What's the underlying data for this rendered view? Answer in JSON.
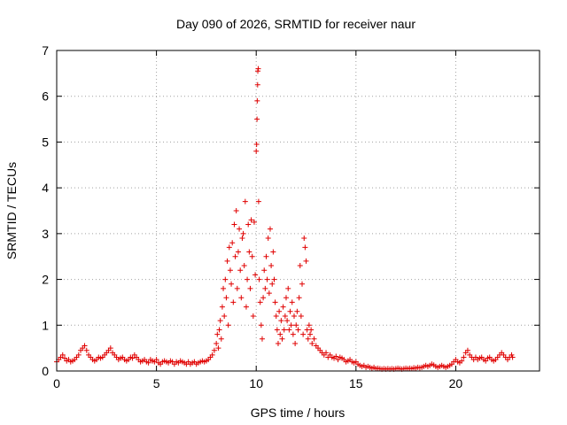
{
  "chart_data": {
    "type": "scatter",
    "title": "Day 090 of 2026, SRMTID for receiver naur",
    "xlabel": "GPS time / hours",
    "ylabel": "SRMTID / TECUs",
    "xlim": [
      0,
      24.2
    ],
    "ylim": [
      0,
      7
    ],
    "xticks": [
      "0",
      "5",
      "10",
      "15",
      "20"
    ],
    "yticks": [
      "0",
      "1",
      "2",
      "3",
      "4",
      "5",
      "6",
      "7"
    ],
    "grid": true,
    "marker": "plus",
    "color": "#e00000",
    "series": [
      {
        "name": "SRMTID",
        "points": [
          [
            0.0,
            0.2
          ],
          [
            0.1,
            0.25
          ],
          [
            0.2,
            0.3
          ],
          [
            0.3,
            0.35
          ],
          [
            0.4,
            0.28
          ],
          [
            0.5,
            0.22
          ],
          [
            0.6,
            0.25
          ],
          [
            0.7,
            0.2
          ],
          [
            0.8,
            0.22
          ],
          [
            0.9,
            0.25
          ],
          [
            1.0,
            0.3
          ],
          [
            1.1,
            0.35
          ],
          [
            1.2,
            0.45
          ],
          [
            1.3,
            0.5
          ],
          [
            1.4,
            0.55
          ],
          [
            1.5,
            0.45
          ],
          [
            1.6,
            0.35
          ],
          [
            1.7,
            0.3
          ],
          [
            1.8,
            0.25
          ],
          [
            1.9,
            0.22
          ],
          [
            2.0,
            0.25
          ],
          [
            2.1,
            0.3
          ],
          [
            2.2,
            0.28
          ],
          [
            2.3,
            0.3
          ],
          [
            2.4,
            0.35
          ],
          [
            2.5,
            0.4
          ],
          [
            2.6,
            0.45
          ],
          [
            2.7,
            0.5
          ],
          [
            2.8,
            0.4
          ],
          [
            2.9,
            0.35
          ],
          [
            3.0,
            0.3
          ],
          [
            3.1,
            0.25
          ],
          [
            3.2,
            0.28
          ],
          [
            3.3,
            0.3
          ],
          [
            3.4,
            0.25
          ],
          [
            3.5,
            0.22
          ],
          [
            3.6,
            0.25
          ],
          [
            3.7,
            0.3
          ],
          [
            3.8,
            0.28
          ],
          [
            3.9,
            0.35
          ],
          [
            4.0,
            0.3
          ],
          [
            4.1,
            0.25
          ],
          [
            4.2,
            0.2
          ],
          [
            4.3,
            0.22
          ],
          [
            4.4,
            0.25
          ],
          [
            4.5,
            0.2
          ],
          [
            4.6,
            0.18
          ],
          [
            4.7,
            0.25
          ],
          [
            4.8,
            0.22
          ],
          [
            4.9,
            0.2
          ],
          [
            5.0,
            0.25
          ],
          [
            5.1,
            0.18
          ],
          [
            5.2,
            0.15
          ],
          [
            5.3,
            0.2
          ],
          [
            5.4,
            0.22
          ],
          [
            5.5,
            0.2
          ],
          [
            5.6,
            0.18
          ],
          [
            5.7,
            0.22
          ],
          [
            5.8,
            0.2
          ],
          [
            5.9,
            0.15
          ],
          [
            6.0,
            0.2
          ],
          [
            6.1,
            0.18
          ],
          [
            6.2,
            0.22
          ],
          [
            6.3,
            0.2
          ],
          [
            6.4,
            0.18
          ],
          [
            6.5,
            0.15
          ],
          [
            6.6,
            0.2
          ],
          [
            6.7,
            0.15
          ],
          [
            6.8,
            0.18
          ],
          [
            6.9,
            0.2
          ],
          [
            7.0,
            0.15
          ],
          [
            7.1,
            0.18
          ],
          [
            7.2,
            0.2
          ],
          [
            7.3,
            0.22
          ],
          [
            7.4,
            0.2
          ],
          [
            7.5,
            0.22
          ],
          [
            7.6,
            0.25
          ],
          [
            7.7,
            0.3
          ],
          [
            7.8,
            0.35
          ],
          [
            7.9,
            0.45
          ],
          [
            8.0,
            0.6
          ],
          [
            8.05,
            0.8
          ],
          [
            8.1,
            0.5
          ],
          [
            8.15,
            0.9
          ],
          [
            8.2,
            1.1
          ],
          [
            8.25,
            0.7
          ],
          [
            8.3,
            1.4
          ],
          [
            8.35,
            1.8
          ],
          [
            8.4,
            1.2
          ],
          [
            8.45,
            2.0
          ],
          [
            8.5,
            1.6
          ],
          [
            8.55,
            2.4
          ],
          [
            8.6,
            1.0
          ],
          [
            8.65,
            2.7
          ],
          [
            8.7,
            2.2
          ],
          [
            8.75,
            1.9
          ],
          [
            8.8,
            2.8
          ],
          [
            8.85,
            1.5
          ],
          [
            8.9,
            3.2
          ],
          [
            8.95,
            2.5
          ],
          [
            9.0,
            3.5
          ],
          [
            9.05,
            1.8
          ],
          [
            9.1,
            2.6
          ],
          [
            9.15,
            3.1
          ],
          [
            9.2,
            2.2
          ],
          [
            9.25,
            1.6
          ],
          [
            9.3,
            2.9
          ],
          [
            9.35,
            3.0
          ],
          [
            9.4,
            2.3
          ],
          [
            9.45,
            3.7
          ],
          [
            9.5,
            1.4
          ],
          [
            9.55,
            2.0
          ],
          [
            9.6,
            3.2
          ],
          [
            9.65,
            2.6
          ],
          [
            9.7,
            1.8
          ],
          [
            9.75,
            3.3
          ],
          [
            9.8,
            2.5
          ],
          [
            9.85,
            1.2
          ],
          [
            9.9,
            3.25
          ],
          [
            9.95,
            2.1
          ],
          [
            10.0,
            4.8
          ],
          [
            10.02,
            4.95
          ],
          [
            10.04,
            5.5
          ],
          [
            10.05,
            5.9
          ],
          [
            10.07,
            6.25
          ],
          [
            10.08,
            6.55
          ],
          [
            10.1,
            6.6
          ],
          [
            10.12,
            3.7
          ],
          [
            10.15,
            2.0
          ],
          [
            10.2,
            1.5
          ],
          [
            10.25,
            1.0
          ],
          [
            10.3,
            0.7
          ],
          [
            10.35,
            1.6
          ],
          [
            10.4,
            2.2
          ],
          [
            10.45,
            1.8
          ],
          [
            10.5,
            2.5
          ],
          [
            10.55,
            2.0
          ],
          [
            10.6,
            2.9
          ],
          [
            10.65,
            1.7
          ],
          [
            10.7,
            3.1
          ],
          [
            10.75,
            2.3
          ],
          [
            10.8,
            1.9
          ],
          [
            10.85,
            2.6
          ],
          [
            10.9,
            2.0
          ],
          [
            10.95,
            1.5
          ],
          [
            11.0,
            1.2
          ],
          [
            11.05,
            0.9
          ],
          [
            11.1,
            0.6
          ],
          [
            11.15,
            1.3
          ],
          [
            11.2,
            0.8
          ],
          [
            11.25,
            1.1
          ],
          [
            11.3,
            0.7
          ],
          [
            11.35,
            1.4
          ],
          [
            11.4,
            0.9
          ],
          [
            11.45,
            1.2
          ],
          [
            11.5,
            1.6
          ],
          [
            11.55,
            1.1
          ],
          [
            11.6,
            1.8
          ],
          [
            11.65,
            0.9
          ],
          [
            11.7,
            1.3
          ],
          [
            11.75,
            1.0
          ],
          [
            11.8,
            1.5
          ],
          [
            11.85,
            0.8
          ],
          [
            11.9,
            1.2
          ],
          [
            11.95,
            0.6
          ],
          [
            12.0,
            1.0
          ],
          [
            12.05,
            1.3
          ],
          [
            12.1,
            0.9
          ],
          [
            12.15,
            1.6
          ],
          [
            12.2,
            2.3
          ],
          [
            12.25,
            1.2
          ],
          [
            12.3,
            1.9
          ],
          [
            12.35,
            0.8
          ],
          [
            12.4,
            2.9
          ],
          [
            12.45,
            2.7
          ],
          [
            12.5,
            2.4
          ],
          [
            12.55,
            0.9
          ],
          [
            12.6,
            0.7
          ],
          [
            12.65,
            1.0
          ],
          [
            12.7,
            0.8
          ],
          [
            12.75,
            0.9
          ],
          [
            12.8,
            0.6
          ],
          [
            12.9,
            0.7
          ],
          [
            13.0,
            0.55
          ],
          [
            13.1,
            0.5
          ],
          [
            13.2,
            0.45
          ],
          [
            13.3,
            0.4
          ],
          [
            13.4,
            0.35
          ],
          [
            13.5,
            0.4
          ],
          [
            13.6,
            0.3
          ],
          [
            13.7,
            0.35
          ],
          [
            13.8,
            0.3
          ],
          [
            13.9,
            0.28
          ],
          [
            14.0,
            0.32
          ],
          [
            14.1,
            0.25
          ],
          [
            14.2,
            0.3
          ],
          [
            14.3,
            0.28
          ],
          [
            14.4,
            0.25
          ],
          [
            14.5,
            0.2
          ],
          [
            14.6,
            0.22
          ],
          [
            14.7,
            0.25
          ],
          [
            14.8,
            0.2
          ],
          [
            14.9,
            0.18
          ],
          [
            15.0,
            0.2
          ],
          [
            15.1,
            0.15
          ],
          [
            15.2,
            0.12
          ],
          [
            15.3,
            0.1
          ],
          [
            15.4,
            0.12
          ],
          [
            15.5,
            0.08
          ],
          [
            15.6,
            0.1
          ],
          [
            15.7,
            0.08
          ],
          [
            15.8,
            0.06
          ],
          [
            15.9,
            0.08
          ],
          [
            16.0,
            0.05
          ],
          [
            16.1,
            0.06
          ],
          [
            16.2,
            0.05
          ],
          [
            16.3,
            0.04
          ],
          [
            16.4,
            0.05
          ],
          [
            16.5,
            0.04
          ],
          [
            16.6,
            0.05
          ],
          [
            16.7,
            0.04
          ],
          [
            16.8,
            0.05
          ],
          [
            16.9,
            0.04
          ],
          [
            17.0,
            0.05
          ],
          [
            17.1,
            0.06
          ],
          [
            17.2,
            0.05
          ],
          [
            17.3,
            0.04
          ],
          [
            17.4,
            0.05
          ],
          [
            17.5,
            0.06
          ],
          [
            17.6,
            0.05
          ],
          [
            17.7,
            0.06
          ],
          [
            17.8,
            0.05
          ],
          [
            17.9,
            0.07
          ],
          [
            18.0,
            0.06
          ],
          [
            18.1,
            0.08
          ],
          [
            18.2,
            0.07
          ],
          [
            18.3,
            0.08
          ],
          [
            18.4,
            0.1
          ],
          [
            18.5,
            0.12
          ],
          [
            18.6,
            0.1
          ],
          [
            18.7,
            0.12
          ],
          [
            18.8,
            0.15
          ],
          [
            18.9,
            0.13
          ],
          [
            19.0,
            0.1
          ],
          [
            19.1,
            0.08
          ],
          [
            19.2,
            0.1
          ],
          [
            19.3,
            0.12
          ],
          [
            19.4,
            0.1
          ],
          [
            19.5,
            0.08
          ],
          [
            19.6,
            0.1
          ],
          [
            19.7,
            0.12
          ],
          [
            19.8,
            0.15
          ],
          [
            19.9,
            0.2
          ],
          [
            20.0,
            0.25
          ],
          [
            20.1,
            0.2
          ],
          [
            20.2,
            0.18
          ],
          [
            20.3,
            0.22
          ],
          [
            20.4,
            0.3
          ],
          [
            20.5,
            0.4
          ],
          [
            20.6,
            0.45
          ],
          [
            20.7,
            0.35
          ],
          [
            20.8,
            0.3
          ],
          [
            20.9,
            0.25
          ],
          [
            21.0,
            0.3
          ],
          [
            21.1,
            0.25
          ],
          [
            21.2,
            0.28
          ],
          [
            21.3,
            0.3
          ],
          [
            21.4,
            0.25
          ],
          [
            21.5,
            0.22
          ],
          [
            21.6,
            0.28
          ],
          [
            21.7,
            0.3
          ],
          [
            21.8,
            0.25
          ],
          [
            21.9,
            0.22
          ],
          [
            22.0,
            0.25
          ],
          [
            22.1,
            0.3
          ],
          [
            22.2,
            0.35
          ],
          [
            22.3,
            0.4
          ],
          [
            22.4,
            0.35
          ],
          [
            22.5,
            0.3
          ],
          [
            22.6,
            0.25
          ],
          [
            22.7,
            0.3
          ],
          [
            22.8,
            0.35
          ],
          [
            22.85,
            0.3
          ]
        ]
      }
    ]
  }
}
